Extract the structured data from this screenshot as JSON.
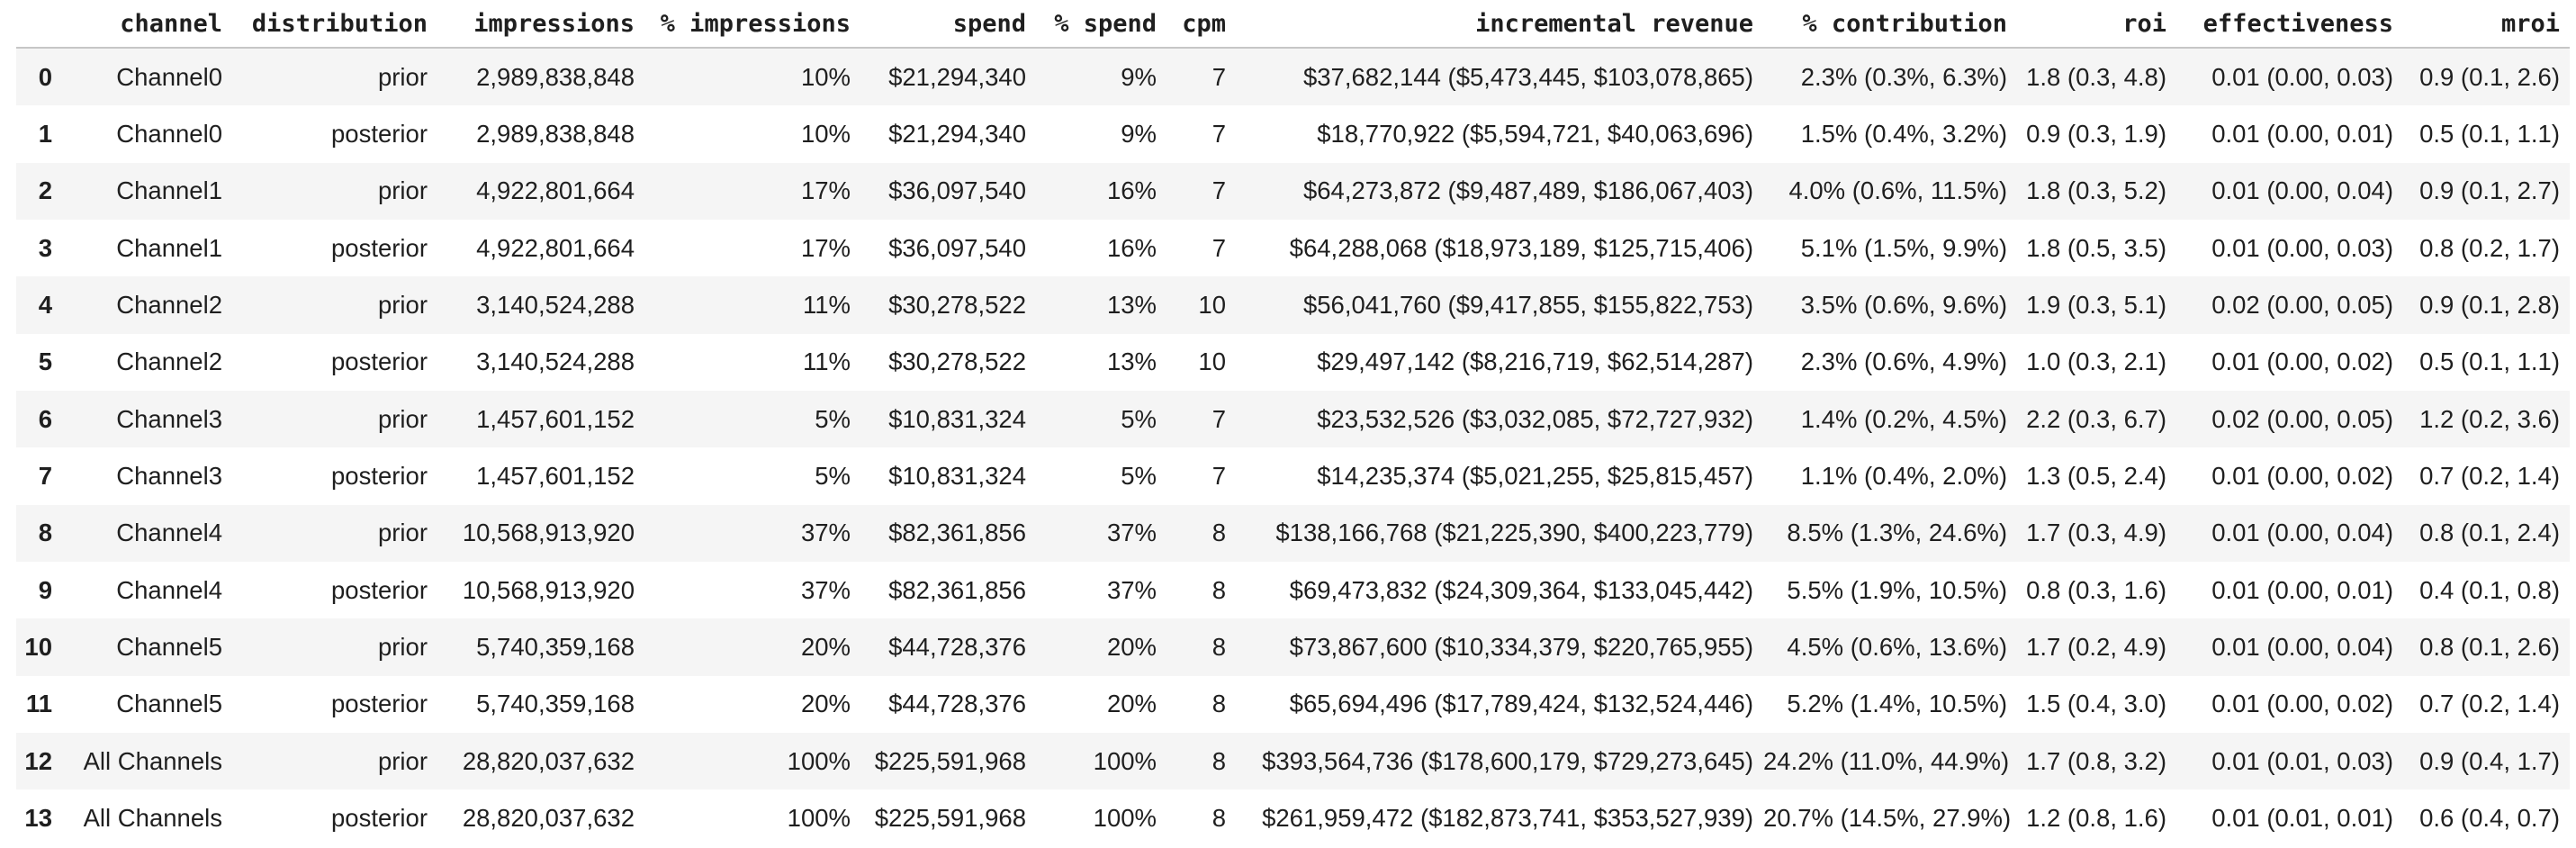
{
  "colors": {
    "background": "#ffffff",
    "text": "#1f1f1f",
    "row_stripe": "#f5f5f5",
    "header_rule": "#c6c6c6"
  },
  "table": {
    "columns": [
      {
        "key": "index",
        "label": ""
      },
      {
        "key": "channel",
        "label": "channel"
      },
      {
        "key": "distribution",
        "label": "distribution"
      },
      {
        "key": "impressions",
        "label": "impressions"
      },
      {
        "key": "pct_impressions",
        "label": "% impressions"
      },
      {
        "key": "spend",
        "label": "spend"
      },
      {
        "key": "pct_spend",
        "label": "% spend"
      },
      {
        "key": "cpm",
        "label": "cpm"
      },
      {
        "key": "incremental_revenue",
        "label": "incremental revenue"
      },
      {
        "key": "pct_contribution",
        "label": "% contribution"
      },
      {
        "key": "roi",
        "label": "roi"
      },
      {
        "key": "effectiveness",
        "label": "effectiveness"
      },
      {
        "key": "mroi",
        "label": "mroi"
      }
    ],
    "rows": [
      {
        "index": "0",
        "channel": "Channel0",
        "distribution": "prior",
        "impressions": "2,989,838,848",
        "pct_impressions": "10%",
        "spend": "$21,294,340",
        "pct_spend": "9%",
        "cpm": "7",
        "incremental_revenue": "$37,682,144 ($5,473,445, $103,078,865)",
        "pct_contribution": "2.3% (0.3%, 6.3%)",
        "roi": "1.8 (0.3, 4.8)",
        "effectiveness": "0.01 (0.00, 0.03)",
        "mroi": "0.9 (0.1, 2.6)"
      },
      {
        "index": "1",
        "channel": "Channel0",
        "distribution": "posterior",
        "impressions": "2,989,838,848",
        "pct_impressions": "10%",
        "spend": "$21,294,340",
        "pct_spend": "9%",
        "cpm": "7",
        "incremental_revenue": "$18,770,922 ($5,594,721, $40,063,696)",
        "pct_contribution": "1.5% (0.4%, 3.2%)",
        "roi": "0.9 (0.3, 1.9)",
        "effectiveness": "0.01 (0.00, 0.01)",
        "mroi": "0.5 (0.1, 1.1)"
      },
      {
        "index": "2",
        "channel": "Channel1",
        "distribution": "prior",
        "impressions": "4,922,801,664",
        "pct_impressions": "17%",
        "spend": "$36,097,540",
        "pct_spend": "16%",
        "cpm": "7",
        "incremental_revenue": "$64,273,872 ($9,487,489, $186,067,403)",
        "pct_contribution": "4.0% (0.6%, 11.5%)",
        "roi": "1.8 (0.3, 5.2)",
        "effectiveness": "0.01 (0.00, 0.04)",
        "mroi": "0.9 (0.1, 2.7)"
      },
      {
        "index": "3",
        "channel": "Channel1",
        "distribution": "posterior",
        "impressions": "4,922,801,664",
        "pct_impressions": "17%",
        "spend": "$36,097,540",
        "pct_spend": "16%",
        "cpm": "7",
        "incremental_revenue": "$64,288,068 ($18,973,189, $125,715,406)",
        "pct_contribution": "5.1% (1.5%, 9.9%)",
        "roi": "1.8 (0.5, 3.5)",
        "effectiveness": "0.01 (0.00, 0.03)",
        "mroi": "0.8 (0.2, 1.7)"
      },
      {
        "index": "4",
        "channel": "Channel2",
        "distribution": "prior",
        "impressions": "3,140,524,288",
        "pct_impressions": "11%",
        "spend": "$30,278,522",
        "pct_spend": "13%",
        "cpm": "10",
        "incremental_revenue": "$56,041,760 ($9,417,855, $155,822,753)",
        "pct_contribution": "3.5% (0.6%, 9.6%)",
        "roi": "1.9 (0.3, 5.1)",
        "effectiveness": "0.02 (0.00, 0.05)",
        "mroi": "0.9 (0.1, 2.8)"
      },
      {
        "index": "5",
        "channel": "Channel2",
        "distribution": "posterior",
        "impressions": "3,140,524,288",
        "pct_impressions": "11%",
        "spend": "$30,278,522",
        "pct_spend": "13%",
        "cpm": "10",
        "incremental_revenue": "$29,497,142 ($8,216,719, $62,514,287)",
        "pct_contribution": "2.3% (0.6%, 4.9%)",
        "roi": "1.0 (0.3, 2.1)",
        "effectiveness": "0.01 (0.00, 0.02)",
        "mroi": "0.5 (0.1, 1.1)"
      },
      {
        "index": "6",
        "channel": "Channel3",
        "distribution": "prior",
        "impressions": "1,457,601,152",
        "pct_impressions": "5%",
        "spend": "$10,831,324",
        "pct_spend": "5%",
        "cpm": "7",
        "incremental_revenue": "$23,532,526 ($3,032,085, $72,727,932)",
        "pct_contribution": "1.4% (0.2%, 4.5%)",
        "roi": "2.2 (0.3, 6.7)",
        "effectiveness": "0.02 (0.00, 0.05)",
        "mroi": "1.2 (0.2, 3.6)"
      },
      {
        "index": "7",
        "channel": "Channel3",
        "distribution": "posterior",
        "impressions": "1,457,601,152",
        "pct_impressions": "5%",
        "spend": "$10,831,324",
        "pct_spend": "5%",
        "cpm": "7",
        "incremental_revenue": "$14,235,374 ($5,021,255, $25,815,457)",
        "pct_contribution": "1.1% (0.4%, 2.0%)",
        "roi": "1.3 (0.5, 2.4)",
        "effectiveness": "0.01 (0.00, 0.02)",
        "mroi": "0.7 (0.2, 1.4)"
      },
      {
        "index": "8",
        "channel": "Channel4",
        "distribution": "prior",
        "impressions": "10,568,913,920",
        "pct_impressions": "37%",
        "spend": "$82,361,856",
        "pct_spend": "37%",
        "cpm": "8",
        "incremental_revenue": "$138,166,768 ($21,225,390, $400,223,779)",
        "pct_contribution": "8.5% (1.3%, 24.6%)",
        "roi": "1.7 (0.3, 4.9)",
        "effectiveness": "0.01 (0.00, 0.04)",
        "mroi": "0.8 (0.1, 2.4)"
      },
      {
        "index": "9",
        "channel": "Channel4",
        "distribution": "posterior",
        "impressions": "10,568,913,920",
        "pct_impressions": "37%",
        "spend": "$82,361,856",
        "pct_spend": "37%",
        "cpm": "8",
        "incremental_revenue": "$69,473,832 ($24,309,364, $133,045,442)",
        "pct_contribution": "5.5% (1.9%, 10.5%)",
        "roi": "0.8 (0.3, 1.6)",
        "effectiveness": "0.01 (0.00, 0.01)",
        "mroi": "0.4 (0.1, 0.8)"
      },
      {
        "index": "10",
        "channel": "Channel5",
        "distribution": "prior",
        "impressions": "5,740,359,168",
        "pct_impressions": "20%",
        "spend": "$44,728,376",
        "pct_spend": "20%",
        "cpm": "8",
        "incremental_revenue": "$73,867,600 ($10,334,379, $220,765,955)",
        "pct_contribution": "4.5% (0.6%, 13.6%)",
        "roi": "1.7 (0.2, 4.9)",
        "effectiveness": "0.01 (0.00, 0.04)",
        "mroi": "0.8 (0.1, 2.6)"
      },
      {
        "index": "11",
        "channel": "Channel5",
        "distribution": "posterior",
        "impressions": "5,740,359,168",
        "pct_impressions": "20%",
        "spend": "$44,728,376",
        "pct_spend": "20%",
        "cpm": "8",
        "incremental_revenue": "$65,694,496 ($17,789,424, $132,524,446)",
        "pct_contribution": "5.2% (1.4%, 10.5%)",
        "roi": "1.5 (0.4, 3.0)",
        "effectiveness": "0.01 (0.00, 0.02)",
        "mroi": "0.7 (0.2, 1.4)"
      },
      {
        "index": "12",
        "channel": "All Channels",
        "distribution": "prior",
        "impressions": "28,820,037,632",
        "pct_impressions": "100%",
        "spend": "$225,591,968",
        "pct_spend": "100%",
        "cpm": "8",
        "incremental_revenue": "$393,564,736 ($178,600,179, $729,273,645)",
        "pct_contribution": "24.2% (11.0%, 44.9%)",
        "roi": "1.7 (0.8, 3.2)",
        "effectiveness": "0.01 (0.01, 0.03)",
        "mroi": "0.9 (0.4, 1.7)"
      },
      {
        "index": "13",
        "channel": "All Channels",
        "distribution": "posterior",
        "impressions": "28,820,037,632",
        "pct_impressions": "100%",
        "spend": "$225,591,968",
        "pct_spend": "100%",
        "cpm": "8",
        "incremental_revenue": "$261,959,472 ($182,873,741, $353,527,939)",
        "pct_contribution": "20.7% (14.5%, 27.9%)",
        "roi": "1.2 (0.8, 1.6)",
        "effectiveness": "0.01 (0.01, 0.01)",
        "mroi": "0.6 (0.4, 0.7)"
      }
    ]
  }
}
